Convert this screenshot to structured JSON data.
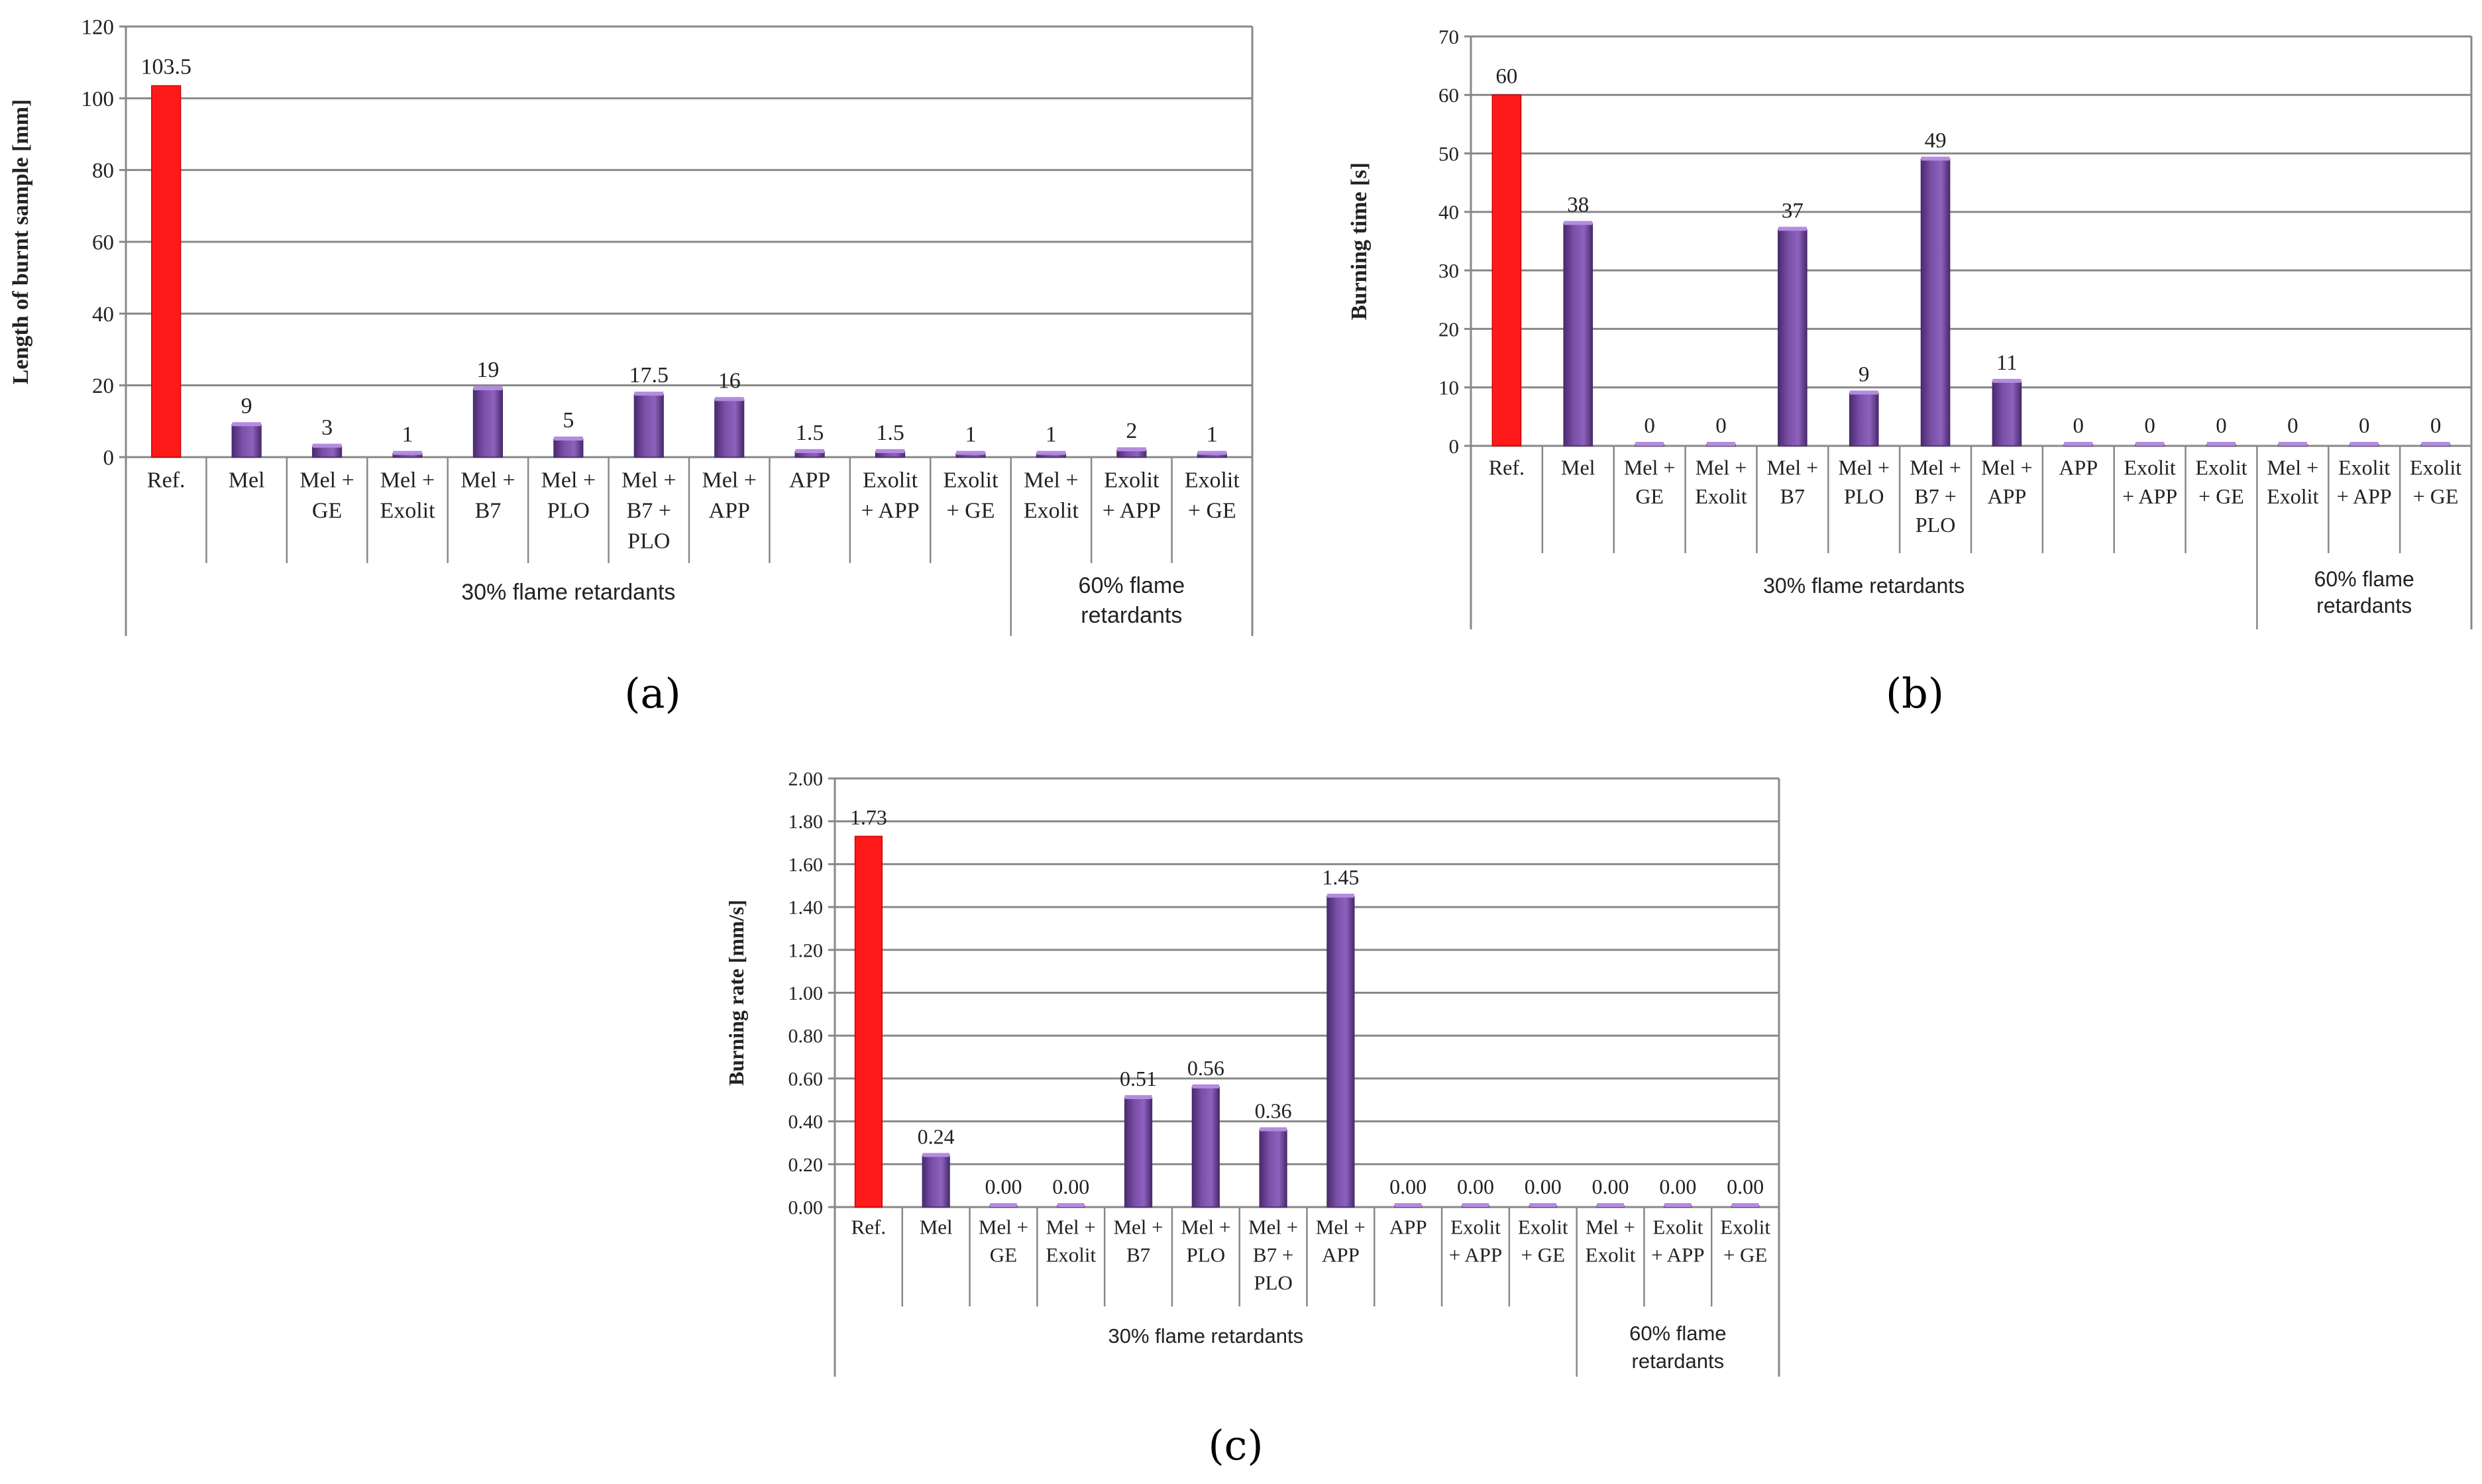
{
  "bar_colors": {
    "reference": "#ff1a1a",
    "sample": "#7a4fa8",
    "sample_dark": "#4a2b6e",
    "grid": "#888888",
    "axis": "#888888"
  },
  "chart_data": [
    {
      "id": "a",
      "type": "bar",
      "caption": "(a)",
      "ylabel": "Length of burnt sample [mm]",
      "ylim": [
        0,
        120
      ],
      "yticks": [
        "0",
        "20",
        "40",
        "60",
        "80",
        "100",
        "120"
      ],
      "categories": [
        "Ref.",
        "Mel",
        "Mel +\nGE",
        "Mel +\nExolit",
        "Mel +\nB7",
        "Mel +\nPLO",
        "Mel +\nB7 +\nPLO",
        "Mel +\nAPP",
        "APP",
        "Exolit\n+ APP",
        "Exolit\n+ GE",
        "Mel +\nExolit",
        "Exolit\n+ APP",
        "Exolit\n+ GE"
      ],
      "values": [
        103.5,
        9,
        3,
        1,
        19,
        5,
        17.5,
        16,
        1.5,
        1.5,
        1,
        1,
        2,
        1
      ],
      "value_labels": [
        "103.5",
        "9",
        "3",
        "1",
        "19",
        "5",
        "17.5",
        "16",
        "1.5",
        "1.5",
        "1",
        "1",
        "2",
        "1"
      ],
      "groups": [
        {
          "label": "30% flame retardants",
          "start": 0,
          "end": 10
        },
        {
          "label": "60% flame\nretardants",
          "start": 11,
          "end": 13
        }
      ]
    },
    {
      "id": "b",
      "type": "bar",
      "caption": "(b)",
      "ylabel": "Burning time [s]",
      "ylim": [
        0,
        70
      ],
      "yticks": [
        "0",
        "10",
        "20",
        "30",
        "40",
        "50",
        "60",
        "70"
      ],
      "categories": [
        "Ref.",
        "Mel",
        "Mel +\nGE",
        "Mel +\nExolit",
        "Mel +\nB7",
        "Mel +\nPLO",
        "Mel +\nB7 +\nPLO",
        "Mel +\nAPP",
        "APP",
        "Exolit\n+ APP",
        "Exolit\n+ GE",
        "Mel +\nExolit",
        "Exolit\n+ APP",
        "Exolit\n+ GE"
      ],
      "values": [
        60,
        38,
        0,
        0,
        37,
        9,
        49,
        11,
        0,
        0,
        0,
        0,
        0,
        0
      ],
      "value_labels": [
        "60",
        "38",
        "0",
        "0",
        "37",
        "9",
        "49",
        "11",
        "0",
        "0",
        "0",
        "0",
        "0",
        "0"
      ],
      "groups": [
        {
          "label": "30% flame retardants",
          "start": 0,
          "end": 10
        },
        {
          "label": "60% flame\nretardants",
          "start": 11,
          "end": 13
        }
      ]
    },
    {
      "id": "c",
      "type": "bar",
      "caption": "(c)",
      "ylabel": "Burning rate [mm/s]",
      "ylim": [
        0,
        2
      ],
      "yticks": [
        "0.00",
        "0.20",
        "0.40",
        "0.60",
        "0.80",
        "1.00",
        "1.20",
        "1.40",
        "1.60",
        "1.80",
        "2.00"
      ],
      "categories": [
        "Ref.",
        "Mel",
        "Mel +\nGE",
        "Mel +\nExolit",
        "Mel +\nB7",
        "Mel +\nPLO",
        "Mel +\nB7 +\nPLO",
        "Mel +\nAPP",
        "APP",
        "Exolit\n+ APP",
        "Exolit\n+ GE",
        "Mel +\nExolit",
        "Exolit\n+ APP",
        "Exolit\n+ GE"
      ],
      "values": [
        1.73,
        0.24,
        0,
        0,
        0.51,
        0.56,
        0.36,
        1.45,
        0,
        0,
        0,
        0,
        0,
        0
      ],
      "value_labels": [
        "1.73",
        "0.24",
        "0.00",
        "0.00",
        "0.51",
        "0.56",
        "0.36",
        "1.45",
        "0.00",
        "0.00",
        "0.00",
        "0.00",
        "0.00",
        "0.00"
      ],
      "groups": [
        {
          "label": "30% flame retardants",
          "start": 0,
          "end": 10
        },
        {
          "label": "60% flame\nretardants",
          "start": 11,
          "end": 13
        }
      ]
    }
  ]
}
